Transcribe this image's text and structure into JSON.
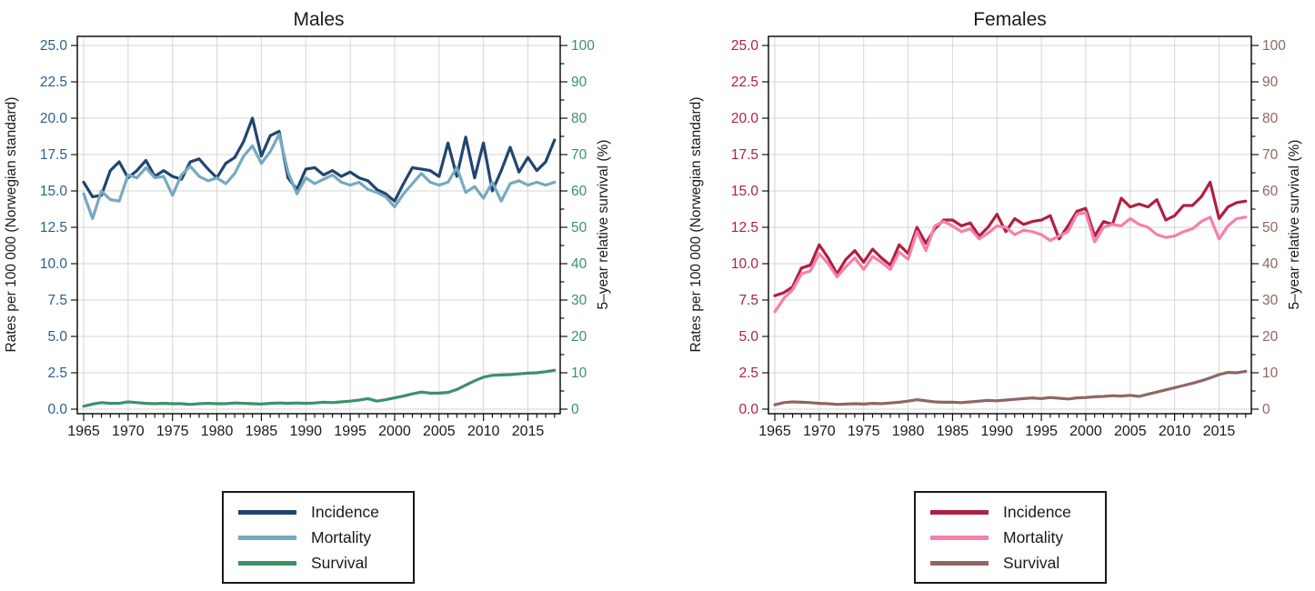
{
  "background": "#ffffff",
  "chart_data": [
    {
      "type": "line",
      "title": "Males",
      "x_axis": {
        "tick_labels": [
          "1965",
          "1970",
          "1975",
          "1980",
          "1985",
          "1990",
          "1995",
          "2000",
          "2005",
          "2010",
          "2015"
        ],
        "start_year": 1965,
        "end_year": 2018
      },
      "left_axis": {
        "label": "Rates per 100 000 (Norwegian standard)",
        "color": "#2a5f8f",
        "range": [
          0,
          25
        ],
        "tick_labels": [
          "0.0",
          "2.5",
          "5.0",
          "7.5",
          "10.0",
          "12.5",
          "15.0",
          "17.5",
          "20.0",
          "22.5",
          "25.0"
        ]
      },
      "right_axis": {
        "label": "5–year relative survival (%)",
        "color": "#3b9169",
        "range": [
          0,
          100
        ],
        "tick_labels": [
          "0",
          "10",
          "20",
          "30",
          "40",
          "50",
          "60",
          "70",
          "80",
          "90",
          "100"
        ]
      },
      "series": [
        {
          "name": "Incidence",
          "color": "#21456f",
          "axis": "left",
          "values": [
            15.6,
            14.6,
            14.7,
            16.4,
            17.0,
            15.9,
            16.4,
            17.1,
            16.0,
            16.4,
            16.0,
            15.8,
            17.0,
            17.2,
            16.5,
            15.9,
            16.9,
            17.3,
            18.4,
            20.0,
            17.4,
            18.8,
            19.1,
            15.9,
            15.1,
            16.5,
            16.6,
            16.1,
            16.4,
            16.0,
            16.3,
            15.9,
            15.7,
            15.1,
            14.8,
            14.3,
            15.5,
            16.6,
            16.5,
            16.4,
            16.0,
            18.3,
            16.0,
            18.7,
            15.9,
            18.3,
            15.0,
            16.4,
            18.0,
            16.3,
            17.3,
            16.4,
            17.0,
            18.5
          ]
        },
        {
          "name": "Mortality",
          "color": "#76a9c1",
          "axis": "left",
          "values": [
            14.8,
            13.1,
            15.0,
            14.4,
            14.3,
            16.1,
            15.9,
            16.6,
            15.9,
            16.0,
            14.7,
            16.1,
            16.7,
            16.0,
            15.7,
            15.9,
            15.5,
            16.2,
            17.4,
            18.1,
            16.9,
            17.7,
            18.9,
            16.3,
            14.8,
            15.9,
            15.5,
            15.8,
            16.1,
            15.6,
            15.4,
            15.6,
            15.1,
            14.9,
            14.6,
            13.9,
            14.8,
            15.5,
            16.2,
            15.6,
            15.4,
            15.6,
            16.6,
            14.9,
            15.3,
            14.5,
            15.6,
            14.3,
            15.5,
            15.7,
            15.4,
            15.6,
            15.4,
            15.6
          ]
        },
        {
          "name": "Survival",
          "color": "#3b9169",
          "axis": "right",
          "values": [
            0.8,
            1.4,
            1.8,
            1.6,
            1.6,
            2.0,
            1.8,
            1.6,
            1.5,
            1.6,
            1.5,
            1.5,
            1.3,
            1.5,
            1.6,
            1.5,
            1.5,
            1.7,
            1.6,
            1.5,
            1.4,
            1.6,
            1.7,
            1.6,
            1.7,
            1.6,
            1.7,
            1.9,
            1.8,
            2.0,
            2.2,
            2.5,
            2.9,
            2.2,
            2.6,
            3.1,
            3.6,
            4.2,
            4.7,
            4.4,
            4.4,
            4.6,
            5.4,
            6.6,
            7.8,
            8.8,
            9.3,
            9.4,
            9.5,
            9.7,
            9.9,
            10.0,
            10.3,
            10.7
          ]
        }
      ]
    },
    {
      "type": "line",
      "title": "Females",
      "x_axis": {
        "tick_labels": [
          "1965",
          "1970",
          "1975",
          "1980",
          "1985",
          "1990",
          "1995",
          "2000",
          "2005",
          "2010",
          "2015"
        ],
        "start_year": 1965,
        "end_year": 2018
      },
      "left_axis": {
        "label": "Rates per 100 000 (Norwegian standard)",
        "color": "#b02040",
        "range": [
          0,
          25
        ],
        "tick_labels": [
          "0.0",
          "2.5",
          "5.0",
          "7.5",
          "10.0",
          "12.5",
          "15.0",
          "17.5",
          "20.0",
          "22.5",
          "25.0"
        ]
      },
      "right_axis": {
        "label": "5–year relative survival (%)",
        "color": "#8f6665",
        "range": [
          0,
          100
        ],
        "tick_labels": [
          "0",
          "10",
          "20",
          "30",
          "40",
          "50",
          "60",
          "70",
          "80",
          "90",
          "100"
        ]
      },
      "series": [
        {
          "name": "Incidence",
          "color": "#b02040",
          "axis": "left",
          "values": [
            7.8,
            8.0,
            8.4,
            9.7,
            9.9,
            11.3,
            10.4,
            9.3,
            10.3,
            10.9,
            10.1,
            11.0,
            10.4,
            9.9,
            11.3,
            10.7,
            12.5,
            11.4,
            12.4,
            13.0,
            13.0,
            12.6,
            12.8,
            11.9,
            12.5,
            13.4,
            12.2,
            13.1,
            12.7,
            12.9,
            13.0,
            13.3,
            11.7,
            12.6,
            13.6,
            13.8,
            11.9,
            12.9,
            12.7,
            14.5,
            13.9,
            14.1,
            13.9,
            14.4,
            13.0,
            13.3,
            14.0,
            14.0,
            14.6,
            15.6,
            13.1,
            13.9,
            14.2,
            14.3
          ]
        },
        {
          "name": "Mortality",
          "color": "#f580ab",
          "axis": "left",
          "values": [
            6.7,
            7.6,
            8.2,
            9.3,
            9.5,
            10.7,
            10.0,
            9.1,
            9.8,
            10.4,
            9.6,
            10.5,
            10.1,
            9.6,
            10.8,
            10.3,
            12.2,
            10.9,
            12.6,
            12.9,
            12.6,
            12.2,
            12.4,
            11.7,
            12.1,
            12.6,
            12.5,
            12.0,
            12.3,
            12.2,
            12.0,
            11.6,
            11.9,
            12.2,
            13.4,
            13.5,
            11.5,
            12.5,
            12.7,
            12.6,
            13.1,
            12.7,
            12.5,
            12.0,
            11.8,
            11.9,
            12.2,
            12.4,
            12.9,
            13.2,
            11.7,
            12.6,
            13.1,
            13.2
          ]
        },
        {
          "name": "Survival",
          "color": "#8f6665",
          "axis": "right",
          "values": [
            1.2,
            1.8,
            2.0,
            1.9,
            1.8,
            1.6,
            1.5,
            1.3,
            1.4,
            1.5,
            1.4,
            1.6,
            1.5,
            1.7,
            1.9,
            2.2,
            2.6,
            2.3,
            2.0,
            1.9,
            1.9,
            1.8,
            2.0,
            2.2,
            2.4,
            2.3,
            2.5,
            2.7,
            2.9,
            3.1,
            2.9,
            3.2,
            3.0,
            2.8,
            3.1,
            3.2,
            3.4,
            3.5,
            3.7,
            3.6,
            3.8,
            3.5,
            4.1,
            4.7,
            5.3,
            5.9,
            6.5,
            7.1,
            7.8,
            8.6,
            9.5,
            10.1,
            10.0,
            10.4
          ]
        }
      ]
    }
  ]
}
